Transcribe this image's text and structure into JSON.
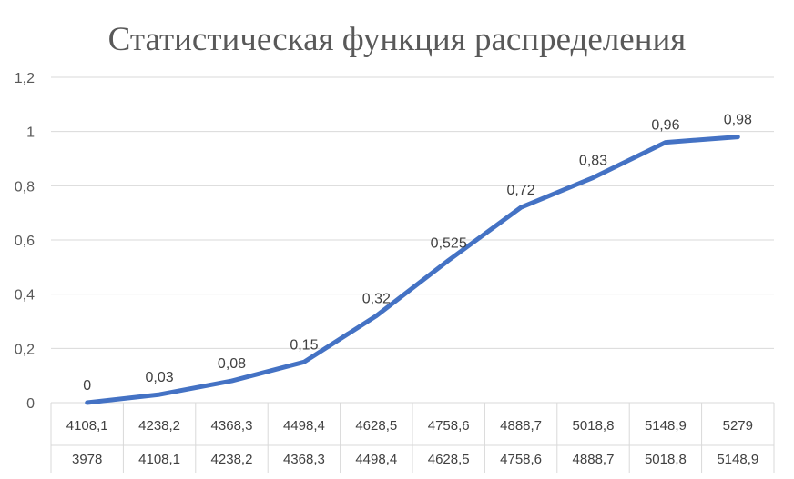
{
  "chart_data": {
    "type": "line",
    "title": "Статистическая функция распределения",
    "ylim": [
      0,
      1.2
    ],
    "y_ticks": [
      "0",
      "0,2",
      "0,4",
      "0,6",
      "0,8",
      "1",
      "1,2"
    ],
    "y_tick_values": [
      0,
      0.2,
      0.4,
      0.6,
      0.8,
      1.0,
      1.2
    ],
    "grid": true,
    "legend": "none",
    "categories": [
      [
        "4108,1",
        "3978"
      ],
      [
        "4238,2",
        "4108,1"
      ],
      [
        "4368,3",
        "4238,2"
      ],
      [
        "4498,4",
        "4368,3"
      ],
      [
        "4628,5",
        "4498,4"
      ],
      [
        "4758,6",
        "4628,5"
      ],
      [
        "4888,7",
        "4758,6"
      ],
      [
        "5018,8",
        "4888,7"
      ],
      [
        "5148,9",
        "5018,8"
      ],
      [
        "5279",
        "5148,9"
      ]
    ],
    "series": [
      {
        "values": [
          0,
          0.03,
          0.08,
          0.15,
          0.32,
          0.525,
          0.72,
          0.83,
          0.96,
          0.98
        ],
        "labels": [
          "0",
          "0,03",
          "0,08",
          "0,15",
          "0,32",
          "0,525",
          "0,72",
          "0,83",
          "0,96",
          "0,98"
        ],
        "color": "#4472C4"
      }
    ],
    "colors": {
      "grid": "#D9D9D9",
      "text": "#595959"
    }
  }
}
